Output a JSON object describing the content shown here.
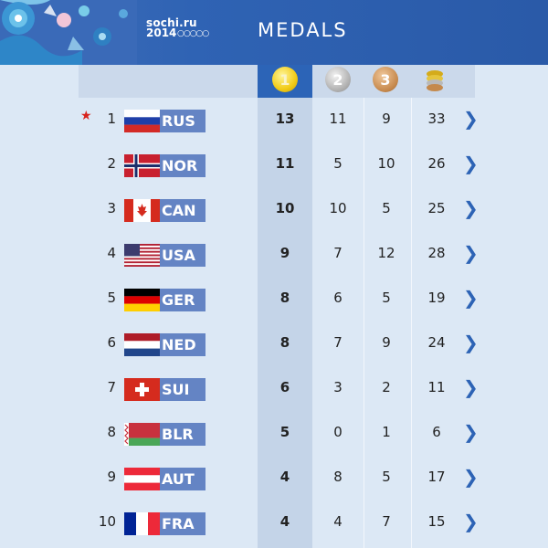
{
  "header": {
    "logo_line1": "sochi.ru",
    "logo_line2": "2014",
    "title": "MEDALS"
  },
  "columns": [
    "1",
    "2",
    "3"
  ],
  "rows": [
    {
      "rank": "1",
      "code": "RUS",
      "gold": "13",
      "silver": "11",
      "bronze": "9",
      "total": "33",
      "host": true
    },
    {
      "rank": "2",
      "code": "NOR",
      "gold": "11",
      "silver": "5",
      "bronze": "10",
      "total": "26"
    },
    {
      "rank": "3",
      "code": "CAN",
      "gold": "10",
      "silver": "10",
      "bronze": "5",
      "total": "25"
    },
    {
      "rank": "4",
      "code": "USA",
      "gold": "9",
      "silver": "7",
      "bronze": "12",
      "total": "28"
    },
    {
      "rank": "5",
      "code": "GER",
      "gold": "8",
      "silver": "6",
      "bronze": "5",
      "total": "19"
    },
    {
      "rank": "6",
      "code": "NED",
      "gold": "8",
      "silver": "7",
      "bronze": "9",
      "total": "24"
    },
    {
      "rank": "7",
      "code": "SUI",
      "gold": "6",
      "silver": "3",
      "bronze": "2",
      "total": "11"
    },
    {
      "rank": "8",
      "code": "BLR",
      "gold": "5",
      "silver": "0",
      "bronze": "1",
      "total": "6"
    },
    {
      "rank": "9",
      "code": "AUT",
      "gold": "4",
      "silver": "8",
      "bronze": "5",
      "total": "17"
    },
    {
      "rank": "10",
      "code": "FRA",
      "gold": "4",
      "silver": "4",
      "bronze": "7",
      "total": "15"
    }
  ],
  "icons": {
    "host_marker": "star-icon",
    "row_action": "chevron-right-icon"
  },
  "colors": {
    "accent": "#2c64b7",
    "code_bg": "#6484c4",
    "host_star": "#d8221c"
  }
}
